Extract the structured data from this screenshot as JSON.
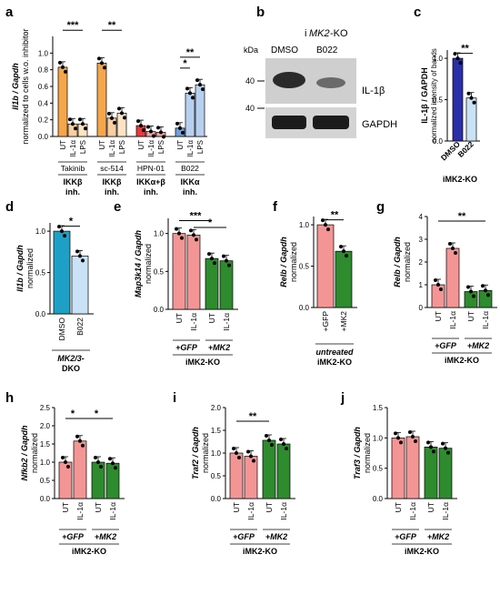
{
  "colors": {
    "ut_orange": "#F5A64A",
    "il_orange": "#F7CFA0",
    "lps_orange": "#FBE3C4",
    "red": "#E8393B",
    "light_red": "#F4A2A6",
    "blue": "#6F9FDC",
    "light_blue": "#B8D0F0",
    "salmon": "#F49595",
    "green": "#2E8B2E",
    "navy": "#2B2FA8",
    "pale_blue": "#C9E2F6",
    "teal": "#1EA0C6"
  },
  "panels": {
    "a": "a",
    "b": "b",
    "c": "c",
    "d": "d",
    "e": "e",
    "f": "f",
    "g": "g",
    "h": "h",
    "i": "i",
    "j": "j"
  },
  "chart_data": [
    {
      "panel": "a",
      "type": "bar",
      "ylabel_gene": "Il1b / Gapdh",
      "ylabel_sub": "normalized to cells w.o. inhibitor",
      "ylim": [
        0,
        1.2
      ],
      "yticks": [
        "0.0",
        "0.2",
        "0.4",
        "0.6",
        "0.8",
        "1.0"
      ],
      "groups": [
        {
          "name": "Takinib",
          "target": "IKKβ",
          "target2": "inh.",
          "categories": [
            "UT",
            "IL-1α",
            "LPS"
          ],
          "values": [
            0.83,
            0.15,
            0.15
          ],
          "colors": [
            "ut_orange",
            "il_orange",
            "lps_orange"
          ]
        },
        {
          "name": "sc-514",
          "target": "IKKβ",
          "target2": "inh.",
          "categories": [
            "UT",
            "IL-1α",
            "LPS"
          ],
          "values": [
            0.88,
            0.22,
            0.28
          ],
          "colors": [
            "ut_orange",
            "il_orange",
            "lps_orange"
          ]
        },
        {
          "name": "HPN-01",
          "target": "IKKα+β",
          "target2": "inh.",
          "categories": [
            "UT",
            "IL-1α",
            "LPS"
          ],
          "values": [
            0.13,
            0.06,
            0.05
          ],
          "colors": [
            "red",
            "light_red",
            "light_red"
          ]
        },
        {
          "name": "B022",
          "target": "IKKα",
          "target2": "inh.",
          "categories": [
            "UT",
            "IL-1α",
            "LPS"
          ],
          "values": [
            0.1,
            0.52,
            0.62
          ],
          "colors": [
            "blue",
            "light_blue",
            "light_blue"
          ]
        }
      ],
      "significance": [
        "***",
        "**",
        "*",
        "**"
      ]
    },
    {
      "panel": "b",
      "type": "blot",
      "title_prefix": "i",
      "title_gene": "MK2",
      "title_suffix": "-KO",
      "kda_label": "kDa",
      "lanes": [
        "DMSO",
        "B022"
      ],
      "markers": [
        "40",
        "40"
      ],
      "bands": [
        "IL-1β",
        "GAPDH"
      ]
    },
    {
      "panel": "c",
      "type": "bar",
      "ylabel": "IL-1β / GAPDH",
      "ylabel_sub": "normalized intensity of bands",
      "ylim": [
        0,
        1.1
      ],
      "yticks": [
        "0.0",
        "0.5",
        "1.0"
      ],
      "categories": [
        "DMSO",
        "B022"
      ],
      "values": [
        1.0,
        0.52
      ],
      "colors": [
        "navy",
        "pale_blue"
      ],
      "significance": [
        "**"
      ],
      "group_label": "iMK2-KO"
    },
    {
      "panel": "d",
      "type": "bar",
      "ylabel_gene": "Il1b / Gapdh",
      "ylabel_sub": "normalized",
      "ylim": [
        0,
        1.1
      ],
      "yticks": [
        "0.0",
        "0.5",
        "1.0"
      ],
      "categories": [
        "DMSO",
        "B022"
      ],
      "values": [
        1.0,
        0.7
      ],
      "colors": [
        "teal",
        "pale_blue"
      ],
      "significance": [
        "*"
      ],
      "group_label": "MK2/3-",
      "group_label2": "DKO"
    },
    {
      "panel": "e",
      "type": "bar",
      "ylabel_gene": "Map3k14 / Gapdh",
      "ylabel_sub": "normalized",
      "ylim": [
        0,
        1.2
      ],
      "yticks": [
        "0.0",
        "0.5",
        "1.0"
      ],
      "categories": [
        "UT",
        "IL-1α",
        "UT",
        "IL-1α"
      ],
      "values": [
        1.0,
        0.98,
        0.67,
        0.64
      ],
      "colors": [
        "salmon",
        "salmon",
        "green",
        "green"
      ],
      "sub_groups": [
        "+GFP",
        "+MK2"
      ],
      "group_label": "iMK2-KO",
      "significance": [
        "***",
        "*"
      ]
    },
    {
      "panel": "f",
      "type": "bar",
      "ylabel_gene": "Relb / Gapdh",
      "ylabel_sub": "normalized",
      "ylim": [
        0,
        1.1
      ],
      "yticks": [
        "0.0",
        "0.5",
        "1.0"
      ],
      "categories": [
        "+GFP",
        "+MK2"
      ],
      "values": [
        1.0,
        0.68
      ],
      "colors": [
        "salmon",
        "green"
      ],
      "group_label": "untreated",
      "group_label2": "iMK2-KO",
      "significance": [
        "**"
      ]
    },
    {
      "panel": "g",
      "type": "bar",
      "ylabel_gene": "Relb / Gapdh",
      "ylabel_sub": "normalized",
      "ylim": [
        0,
        4
      ],
      "yticks": [
        "0",
        "1",
        "2",
        "3",
        "4"
      ],
      "categories": [
        "UT",
        "IL-1α",
        "UT",
        "IL-1α"
      ],
      "values": [
        1.0,
        2.6,
        0.7,
        0.75
      ],
      "colors": [
        "salmon",
        "salmon",
        "green",
        "green"
      ],
      "sub_groups": [
        "+GFP",
        "+MK2"
      ],
      "group_label": "iMK2-KO",
      "significance": [
        "**"
      ]
    },
    {
      "panel": "h",
      "type": "bar",
      "ylabel_gene": "Nfkb2 / Gapdh",
      "ylabel_sub": "normalized",
      "ylim": [
        0,
        2.5
      ],
      "yticks": [
        "0.0",
        "0.5",
        "1.0",
        "1.5",
        "2.0",
        "2.5"
      ],
      "categories": [
        "UT",
        "IL-1α",
        "UT",
        "IL-1α"
      ],
      "values": [
        1.0,
        1.58,
        1.0,
        0.97
      ],
      "colors": [
        "salmon",
        "salmon",
        "green",
        "green"
      ],
      "sub_groups": [
        "+GFP",
        "+MK2"
      ],
      "group_label": "iMK2-KO",
      "significance": [
        "*",
        "*"
      ]
    },
    {
      "panel": "i",
      "type": "bar",
      "ylabel_gene": "Traf2 / Gapdh",
      "ylabel_sub": "normalized",
      "ylim": [
        0,
        2.0
      ],
      "yticks": [
        "0.0",
        "0.5",
        "1.0",
        "1.5",
        "2.0"
      ],
      "categories": [
        "UT",
        "IL-1α",
        "UT",
        "IL-1α"
      ],
      "values": [
        1.0,
        0.93,
        1.28,
        1.2
      ],
      "colors": [
        "salmon",
        "salmon",
        "green",
        "green"
      ],
      "sub_groups": [
        "+GFP",
        "+MK2"
      ],
      "group_label": "iMK2-KO",
      "significance": [
        "**"
      ]
    },
    {
      "panel": "j",
      "type": "bar",
      "ylabel_gene": "Traf3 / Gapdh",
      "ylabel_sub": "normalized",
      "ylim": [
        0,
        1.5
      ],
      "yticks": [
        "0.0",
        "0.5",
        "1.0",
        "1.5"
      ],
      "categories": [
        "UT",
        "IL-1α",
        "UT",
        "IL-1α"
      ],
      "values": [
        1.0,
        1.02,
        0.85,
        0.83
      ],
      "colors": [
        "salmon",
        "salmon",
        "green",
        "green"
      ],
      "sub_groups": [
        "+GFP",
        "+MK2"
      ],
      "group_label": "iMK2-KO",
      "significance": []
    }
  ]
}
